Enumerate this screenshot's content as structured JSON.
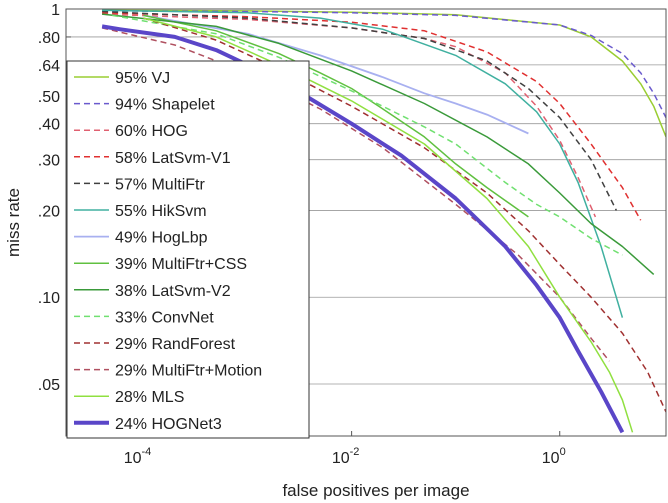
{
  "chart_data": {
    "type": "line",
    "title": "",
    "xlabel": "false positives per image",
    "ylabel": "miss rate",
    "xscale": "log",
    "yscale": "log",
    "xlim": [
      1.8e-05,
      10.5
    ],
    "ylim": [
      0.033,
      1.0
    ],
    "xticks": [
      {
        "value": 0.0001,
        "base": "10",
        "exp": "-4"
      },
      {
        "value": 0.01,
        "base": "10",
        "exp": "-2"
      },
      {
        "value": 1,
        "base": "10",
        "exp": "0"
      }
    ],
    "yticks": [
      {
        "value": 1,
        "label": "1"
      },
      {
        "value": 0.8,
        "label": ".80"
      },
      {
        "value": 0.64,
        "label": ".64"
      },
      {
        "value": 0.5,
        "label": ".50"
      },
      {
        "value": 0.4,
        "label": ".40"
      },
      {
        "value": 0.3,
        "label": ".30"
      },
      {
        "value": 0.2,
        "label": ".20"
      },
      {
        "value": 0.1,
        "label": ".10"
      },
      {
        "value": 0.05,
        "label": ".05"
      }
    ],
    "grid": true,
    "legend_position": "left",
    "series": [
      {
        "name": "95% VJ",
        "color": "#9acd32",
        "dash": "solid",
        "width": 1.5,
        "x": [
          4e-05,
          0.001,
          0.01,
          0.1,
          1,
          2,
          4,
          6,
          8,
          10.5
        ],
        "y": [
          0.99,
          0.985,
          0.975,
          0.955,
          0.88,
          0.8,
          0.66,
          0.55,
          0.46,
          0.36
        ]
      },
      {
        "name": "94% Shapelet",
        "color": "#6a5acd",
        "dash": "6,4",
        "width": 1.5,
        "x": [
          4e-05,
          0.001,
          0.01,
          0.1,
          1,
          2,
          4,
          6,
          8,
          10.5
        ],
        "y": [
          0.985,
          0.98,
          0.97,
          0.95,
          0.88,
          0.81,
          0.7,
          0.6,
          0.51,
          0.42
        ]
      },
      {
        "name": "60% HOG",
        "color": "#e06070",
        "dash": "6,4",
        "width": 1.5,
        "x": [
          4e-05,
          0.001,
          0.01,
          0.05,
          0.1,
          0.3,
          0.6,
          1.0,
          1.5,
          2.2
        ],
        "y": [
          0.96,
          0.92,
          0.86,
          0.79,
          0.74,
          0.6,
          0.46,
          0.35,
          0.26,
          0.19
        ]
      },
      {
        "name": "58% LatSvm-V1",
        "color": "#e03030",
        "dash": "6,4",
        "width": 1.5,
        "x": [
          4e-05,
          0.001,
          0.01,
          0.05,
          0.2,
          0.6,
          1.0,
          2.0,
          4.0,
          6.0
        ],
        "y": [
          0.97,
          0.94,
          0.9,
          0.84,
          0.71,
          0.56,
          0.47,
          0.34,
          0.24,
          0.185
        ]
      },
      {
        "name": "57% MultiFtr",
        "color": "#404040",
        "dash": "6,4",
        "width": 1.5,
        "x": [
          4e-05,
          0.001,
          0.01,
          0.05,
          0.2,
          0.5,
          1.0,
          2.0,
          3.5
        ],
        "y": [
          0.98,
          0.93,
          0.86,
          0.79,
          0.66,
          0.53,
          0.42,
          0.3,
          0.2
        ]
      },
      {
        "name": "55% HikSvm",
        "color": "#40b0a0",
        "dash": "solid",
        "width": 1.5,
        "x": [
          4e-05,
          0.001,
          0.005,
          0.02,
          0.1,
          0.3,
          0.6,
          1.0,
          1.5,
          2.5,
          4.0
        ],
        "y": [
          0.99,
          0.97,
          0.93,
          0.85,
          0.69,
          0.55,
          0.44,
          0.34,
          0.25,
          0.15,
          0.085
        ]
      },
      {
        "name": "49% HogLbp",
        "color": "#a8b0f0",
        "dash": "solid",
        "width": 1.8,
        "x": [
          0.0001,
          0.001,
          0.005,
          0.02,
          0.05,
          0.1,
          0.2,
          0.5
        ],
        "y": [
          0.95,
          0.82,
          0.69,
          0.58,
          0.51,
          0.47,
          0.43,
          0.37
        ]
      },
      {
        "name": "39% MultiFtr+CSS",
        "color": "#60c040",
        "dash": "solid",
        "width": 1.5,
        "x": [
          0.0001,
          0.0005,
          0.002,
          0.005,
          0.01,
          0.02,
          0.05,
          0.1,
          0.2,
          0.5
        ],
        "y": [
          0.95,
          0.84,
          0.7,
          0.6,
          0.53,
          0.45,
          0.36,
          0.29,
          0.24,
          0.19
        ]
      },
      {
        "name": "38% LatSvm-V2",
        "color": "#3a9a3a",
        "dash": "solid",
        "width": 1.5,
        "x": [
          4e-05,
          0.0005,
          0.002,
          0.01,
          0.05,
          0.2,
          0.5,
          1.0,
          2.0,
          4.0,
          8.0
        ],
        "y": [
          0.96,
          0.87,
          0.76,
          0.61,
          0.47,
          0.36,
          0.29,
          0.23,
          0.18,
          0.15,
          0.12
        ]
      },
      {
        "name": "33% ConvNet",
        "color": "#70e070",
        "dash": "6,4",
        "width": 1.5,
        "x": [
          5e-05,
          0.0005,
          0.002,
          0.01,
          0.05,
          0.1,
          0.3,
          0.6,
          1.0,
          2.0,
          4.0
        ],
        "y": [
          0.95,
          0.82,
          0.68,
          0.52,
          0.39,
          0.34,
          0.25,
          0.21,
          0.19,
          0.16,
          0.14
        ]
      },
      {
        "name": "29% RandForest",
        "color": "#a03030",
        "dash": "6,4",
        "width": 1.5,
        "x": [
          0.0001,
          0.0005,
          0.002,
          0.01,
          0.05,
          0.2,
          0.5,
          1.0,
          2.0,
          4.0,
          7.0,
          10.5
        ],
        "y": [
          0.93,
          0.78,
          0.62,
          0.46,
          0.33,
          0.23,
          0.17,
          0.13,
          0.1,
          0.075,
          0.055,
          0.04
        ]
      },
      {
        "name": "29% MultiFtr+Motion",
        "color": "#b05060",
        "dash": "6,4",
        "width": 1.5,
        "x": [
          4e-05,
          0.0002,
          0.001,
          0.005,
          0.02,
          0.1,
          0.4,
          1.0,
          2.0,
          3.0
        ],
        "y": [
          0.86,
          0.75,
          0.6,
          0.45,
          0.33,
          0.21,
          0.14,
          0.1,
          0.072,
          0.06
        ]
      },
      {
        "name": "28% MLS",
        "color": "#90e040",
        "dash": "solid",
        "width": 1.5,
        "x": [
          0.0001,
          0.0005,
          0.002,
          0.01,
          0.05,
          0.2,
          0.5,
          1.0,
          2.0,
          3.0,
          4.0,
          5.0
        ],
        "y": [
          0.93,
          0.8,
          0.64,
          0.48,
          0.34,
          0.22,
          0.15,
          0.1,
          0.07,
          0.055,
          0.044,
          0.034
        ]
      },
      {
        "name": "24% HOGNet3",
        "color": "#5a46c8",
        "dash": "solid",
        "width": 4,
        "x": [
          4e-05,
          6e-05,
          0.0002,
          0.0005,
          0.001,
          0.003,
          0.01,
          0.03,
          0.1,
          0.3,
          0.6,
          1.0,
          1.5,
          2.5,
          4.0
        ],
        "y": [
          0.87,
          0.85,
          0.8,
          0.72,
          0.64,
          0.52,
          0.4,
          0.31,
          0.22,
          0.15,
          0.11,
          0.085,
          0.065,
          0.047,
          0.034
        ]
      }
    ]
  }
}
